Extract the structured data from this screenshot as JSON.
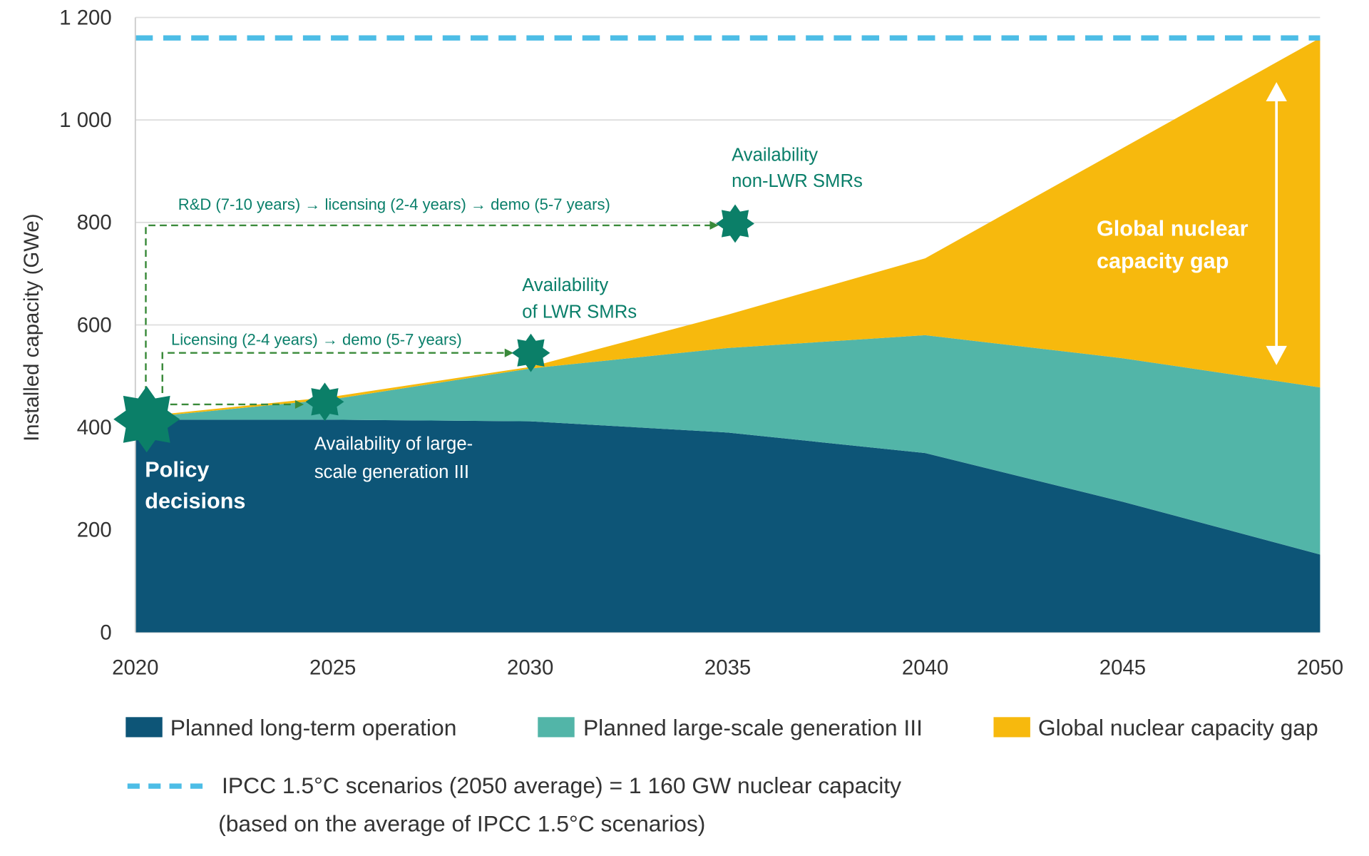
{
  "chart_data": {
    "type": "area",
    "stacked": true,
    "x": [
      2020,
      2025,
      2030,
      2035,
      2040,
      2045,
      2050
    ],
    "series": [
      {
        "name": "Planned long-term operation",
        "color": "#0d5577",
        "values": [
          415,
          415,
          412,
          390,
          350,
          255,
          152
        ]
      },
      {
        "name": "Planned large-scale generation III",
        "color": "#52b5a8",
        "values": [
          3,
          40,
          103,
          165,
          230,
          280,
          326
        ]
      },
      {
        "name": "Global nuclear capacity gap",
        "color": "#f7b90d",
        "values": [
          2,
          5,
          3,
          65,
          150,
          410,
          682
        ]
      }
    ],
    "reference_line": {
      "value": 1160,
      "color": "#4dbde6",
      "style": "dashed"
    },
    "ylabel": "Installed capacity (GWe)",
    "xlabel": "",
    "ylim": [
      0,
      1200
    ],
    "xlim": [
      2020,
      2050
    ],
    "yticks": [
      0,
      200,
      400,
      600,
      800,
      1000,
      1200
    ],
    "ytick_labels": [
      "0",
      "200",
      "400",
      "600",
      "800",
      "1 000",
      "1 200"
    ],
    "xtick_labels": [
      "2020",
      "2025",
      "2030",
      "2035",
      "2040",
      "2045",
      "2050"
    ],
    "grid": true,
    "legend_placement": "bottom",
    "annotations": {
      "policy": [
        "Policy",
        "decisions"
      ],
      "large_scale": [
        "Availability of large-",
        "scale generation III"
      ],
      "lwr": [
        "Availability",
        "of LWR SMRs"
      ],
      "non_lwr": [
        "Availability",
        "non-LWR SMRs"
      ],
      "rd_path": "R&D (7-10 years) → licensing (2-4 years) → demo (5-7 years)",
      "lic_path": "Licensing (2-4 years) → demo (5-7 years)",
      "gap": [
        "Global nuclear",
        "capacity gap"
      ]
    },
    "milestones": [
      {
        "label": "Policy decisions",
        "year": 2020.3,
        "value": 415
      },
      {
        "label": "Availability of large-scale generation III",
        "year": 2024.8,
        "value": 450
      },
      {
        "label": "Availability of LWR SMRs",
        "year": 2030,
        "value": 545
      },
      {
        "label": "Availability non-LWR SMRs",
        "year": 2035.2,
        "value": 800
      }
    ],
    "legend": {
      "ipcc": "IPCC 1.5°C scenarios (2050 average) = 1 160 GW nuclear capacity",
      "ipcc_note": "(based on the average of IPCC 1.5°C scenarios)"
    }
  }
}
